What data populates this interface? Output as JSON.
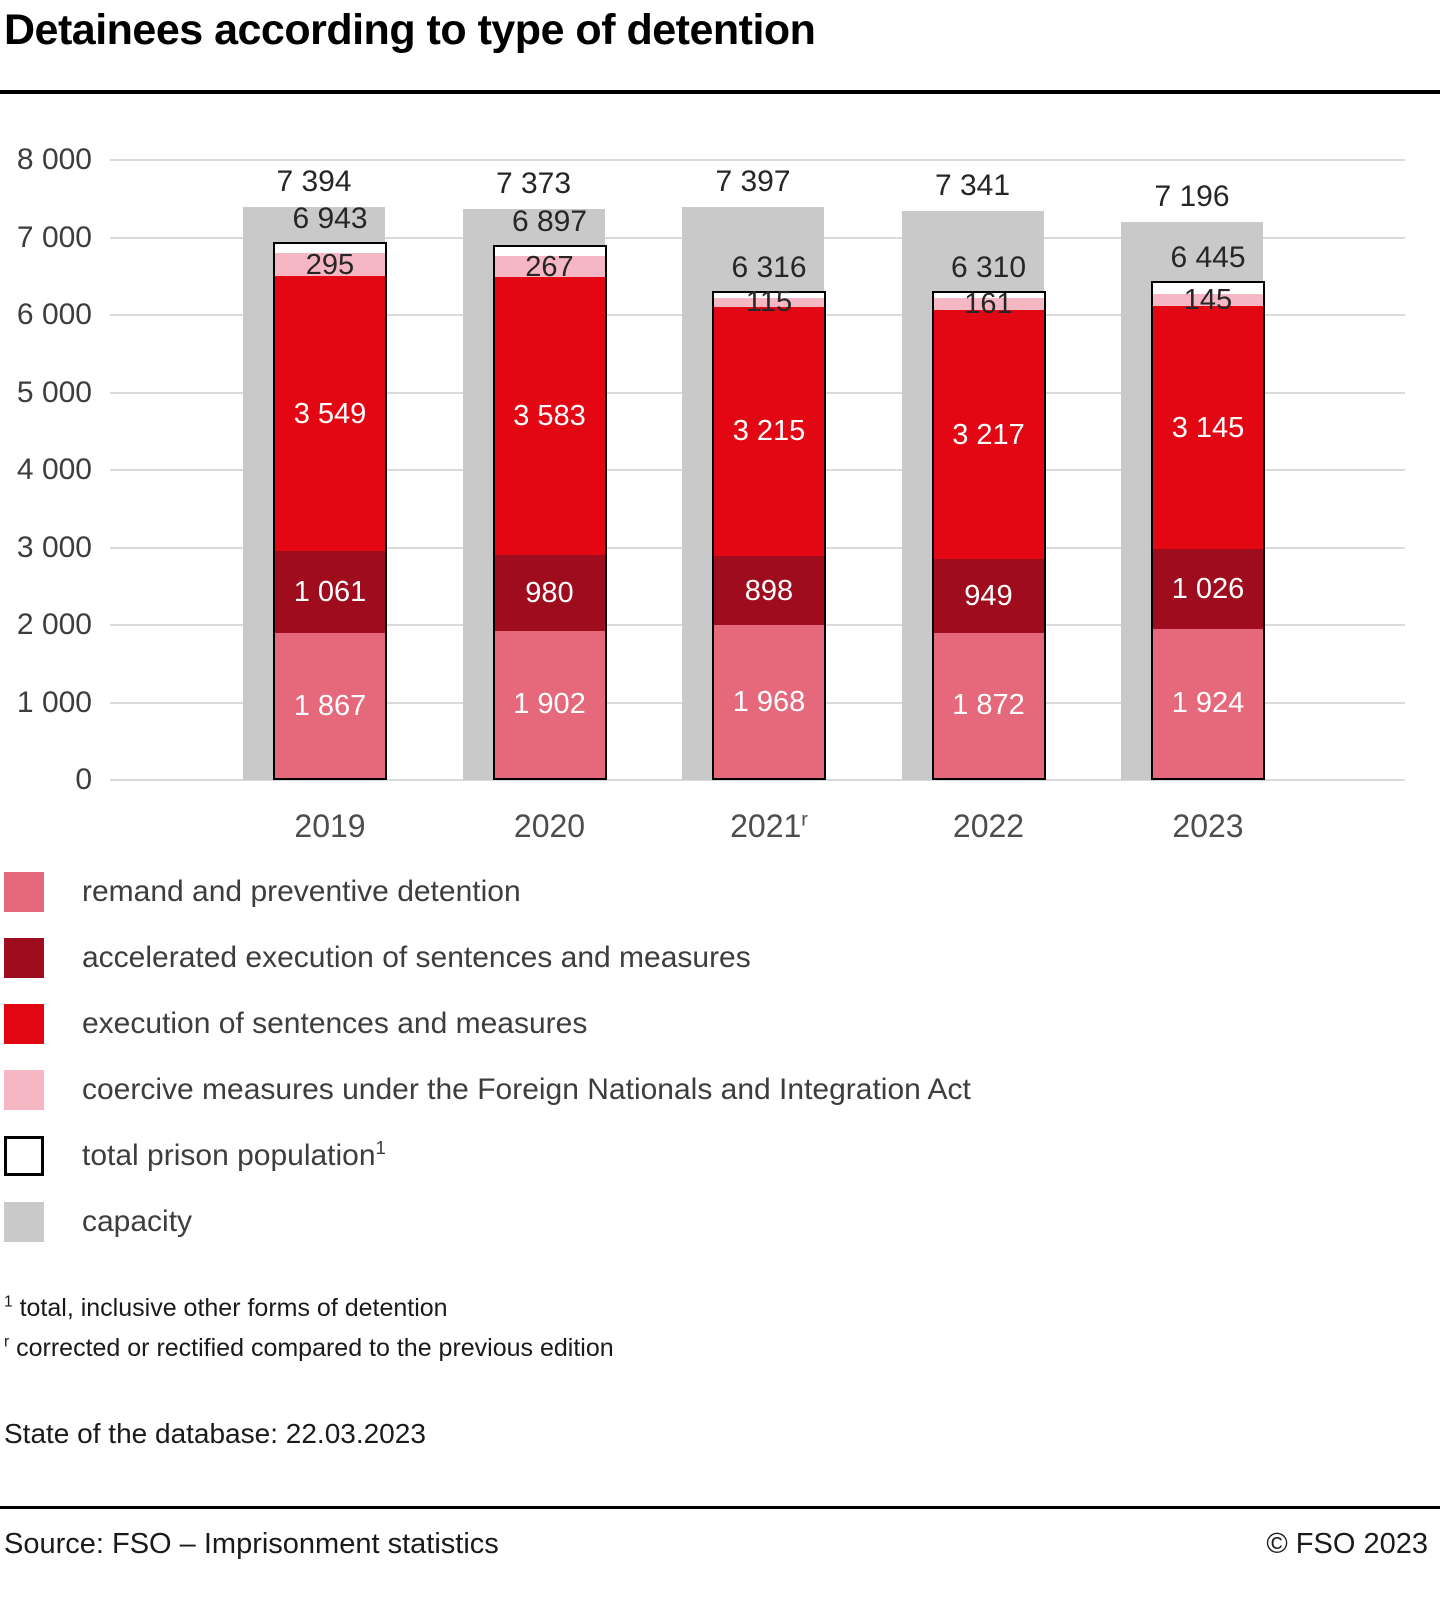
{
  "title": "Detainees according to type of detention",
  "chart_data": {
    "type": "bar",
    "stacked": true,
    "categories": [
      "2019",
      "2020",
      "2021",
      "2022",
      "2023"
    ],
    "category_sups": [
      "",
      "",
      "r",
      "",
      ""
    ],
    "series": [
      {
        "name": "remand and preventive detention",
        "color": "#e5687b",
        "label_color": "#ffffff",
        "values": [
          1867,
          1902,
          1968,
          1872,
          1924
        ]
      },
      {
        "name": "accelerated execution of sentences and measures",
        "color": "#9e0c1e",
        "label_color": "#ffffff",
        "values": [
          1061,
          980,
          898,
          949,
          1026
        ]
      },
      {
        "name": "execution of sentences and measures",
        "color": "#e30613",
        "label_color": "#ffffff",
        "values": [
          3549,
          3583,
          3215,
          3217,
          3145
        ]
      },
      {
        "name": "coercive measures under the Foreign Nationals and Integration Act",
        "color": "#f5b7c4",
        "label_color": "#262626",
        "values": [
          295,
          267,
          115,
          161,
          145
        ]
      }
    ],
    "totals": {
      "name": "total prison population",
      "sup": "1",
      "swatch": "white-outline",
      "values": [
        6943,
        6897,
        6316,
        6310,
        6445
      ]
    },
    "capacity": {
      "name": "capacity",
      "color": "#c9c9c9",
      "values": [
        7394,
        7373,
        7397,
        7341,
        7196
      ]
    },
    "ylim": [
      0,
      8000
    ],
    "ytick_step": 1000,
    "grid": true,
    "legend_position": "bottom-left",
    "xlabel": "",
    "ylabel": ""
  },
  "footnotes": [
    {
      "sup": "1",
      "text": "total, inclusive other forms of detention"
    },
    {
      "sup": "r",
      "text": "corrected or rectified compared to the previous edition"
    }
  ],
  "state_line": "State of the database: 22.03.2023",
  "footer": {
    "source": "Source: FSO – Imprisonment statistics",
    "copyright": "© FSO 2023"
  }
}
